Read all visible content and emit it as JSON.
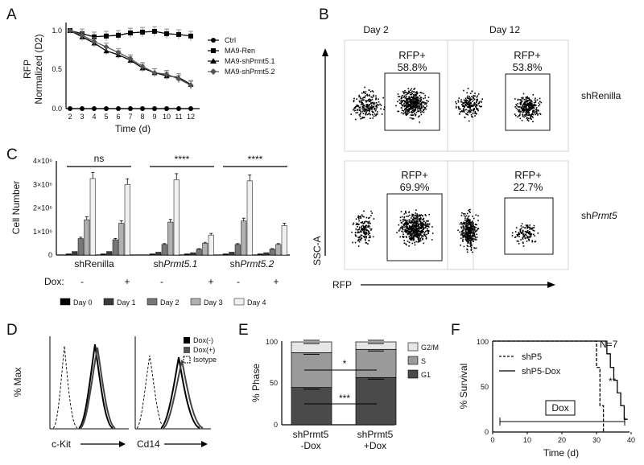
{
  "panels": {
    "A": {
      "label": "A",
      "ylabel_line1": "RFP",
      "ylabel_line2": "Normalized (D2)",
      "xlabel": "Time (d)",
      "yticks": [
        "0.0",
        "0.5",
        "1.0"
      ],
      "legend": [
        "Ctrl",
        "MA9-Ren",
        "MA9-shPrmt5.1",
        "MA9-shPrmt5.2"
      ]
    },
    "B": {
      "label": "B",
      "col_titles": [
        "Day 2",
        "Day 12"
      ],
      "row_labels": [
        "shRenilla",
        "sh",
        "Prmt5"
      ],
      "gate_label": "RFP+",
      "pcts": [
        "58.8%",
        "53.8%",
        "69.9%",
        "22.7%"
      ],
      "yaxis": "SSC-A",
      "xaxis": "RFP"
    },
    "C": {
      "label": "C",
      "ylabel": "Cell Number",
      "yticks": [
        "0",
        "1×10⁶",
        "2×10⁶",
        "3×10⁶",
        "4×10⁶"
      ],
      "groups": [
        "shRenilla",
        "sh",
        "Prmt5.1",
        "sh",
        "Prmt5.2"
      ],
      "sig": [
        "ns",
        "****",
        "****"
      ],
      "dox_label": "Dox:",
      "dox_values": [
        "-",
        "+",
        "-",
        "+",
        "-",
        "+"
      ],
      "legend": [
        "Day 0",
        "Day 1",
        "Day 2",
        "Day 3",
        "Day 4"
      ]
    },
    "D": {
      "label": "D",
      "ylabel": "% Max",
      "xlabels": [
        "c-Kit",
        "Cd14"
      ],
      "legend": [
        "Dox(-)",
        "Dox(+)",
        "Isotype"
      ]
    },
    "E": {
      "label": "E",
      "ylabel": "% Phase",
      "yticks": [
        "0",
        "50",
        "100"
      ],
      "categories": [
        "shPrmt5",
        "-Dox",
        "shPrmt5",
        "+Dox"
      ],
      "legend": [
        "G2/M",
        "S",
        "G1"
      ],
      "sig": [
        "*",
        "***"
      ]
    },
    "F": {
      "label": "F",
      "ylabel": "% Survival",
      "xlabel": "Time (d)",
      "yticks": [
        "0",
        "50",
        "100"
      ],
      "xticks": [
        "0",
        "10",
        "20",
        "30",
        "40"
      ],
      "legend": [
        "shP5",
        "shP5-Dox"
      ],
      "n_label": "N=7",
      "sig": "**",
      "dox_box": "Dox"
    }
  },
  "chart_data": [
    {
      "panel": "A",
      "type": "line",
      "x": [
        2,
        3,
        4,
        5,
        6,
        7,
        8,
        9,
        10,
        11,
        12
      ],
      "ylim": [
        0,
        1.1
      ],
      "series": [
        {
          "name": "Ctrl",
          "values": [
            0,
            0,
            0,
            0,
            0,
            0,
            0,
            0,
            0,
            0,
            0
          ]
        },
        {
          "name": "MA9-Ren",
          "values": [
            1.0,
            0.96,
            0.92,
            0.93,
            0.94,
            0.97,
            0.98,
            0.99,
            0.96,
            0.95,
            0.93
          ]
        },
        {
          "name": "MA9-shPrmt5.1",
          "values": [
            1.0,
            0.92,
            0.84,
            0.74,
            0.69,
            0.62,
            0.52,
            0.46,
            0.42,
            0.4,
            0.31
          ]
        },
        {
          "name": "MA9-shPrmt5.2",
          "values": [
            1.0,
            0.94,
            0.86,
            0.79,
            0.72,
            0.64,
            0.54,
            0.46,
            0.44,
            0.38,
            0.3
          ]
        }
      ]
    },
    {
      "panel": "C",
      "type": "bar",
      "ylim": [
        0,
        4000000
      ],
      "categories": [
        "shRenilla -",
        "shRenilla +",
        "shPrmt5.1 -",
        "shPrmt5.1 +",
        "shPrmt5.2 -",
        "shPrmt5.2 +"
      ],
      "series": [
        {
          "name": "Day 0",
          "values": [
            50000,
            50000,
            50000,
            50000,
            50000,
            50000
          ]
        },
        {
          "name": "Day 1",
          "values": [
            150000,
            150000,
            120000,
            100000,
            120000,
            100000
          ]
        },
        {
          "name": "Day 2",
          "values": [
            700000,
            650000,
            450000,
            250000,
            450000,
            250000
          ]
        },
        {
          "name": "Day 3",
          "values": [
            1500000,
            1350000,
            1400000,
            500000,
            1450000,
            450000
          ]
        },
        {
          "name": "Day 4",
          "values": [
            3250000,
            3000000,
            3200000,
            850000,
            3150000,
            1250000
          ]
        }
      ]
    },
    {
      "panel": "E",
      "type": "bar",
      "ylim": [
        0,
        100
      ],
      "categories": [
        "shPrmt5 -Dox",
        "shPrmt5 +Dox"
      ],
      "series": [
        {
          "name": "G1",
          "values": [
            45,
            57
          ]
        },
        {
          "name": "S",
          "values": [
            42,
            34
          ]
        },
        {
          "name": "G2/M",
          "values": [
            13,
            9
          ]
        }
      ]
    },
    {
      "panel": "F",
      "type": "line",
      "xlim": [
        0,
        40
      ],
      "ylim": [
        0,
        100
      ],
      "series": [
        {
          "name": "shP5",
          "x": [
            0,
            30,
            30,
            31,
            31,
            32,
            32
          ],
          "values": [
            100,
            100,
            71,
            71,
            29,
            29,
            0
          ]
        },
        {
          "name": "shP5-Dox",
          "x": [
            0,
            33,
            33,
            34,
            34,
            35,
            35,
            36,
            36,
            37,
            37,
            38,
            38,
            39
          ],
          "values": [
            100,
            100,
            86,
            86,
            71,
            71,
            57,
            57,
            43,
            43,
            29,
            29,
            14,
            14
          ]
        }
      ]
    }
  ]
}
